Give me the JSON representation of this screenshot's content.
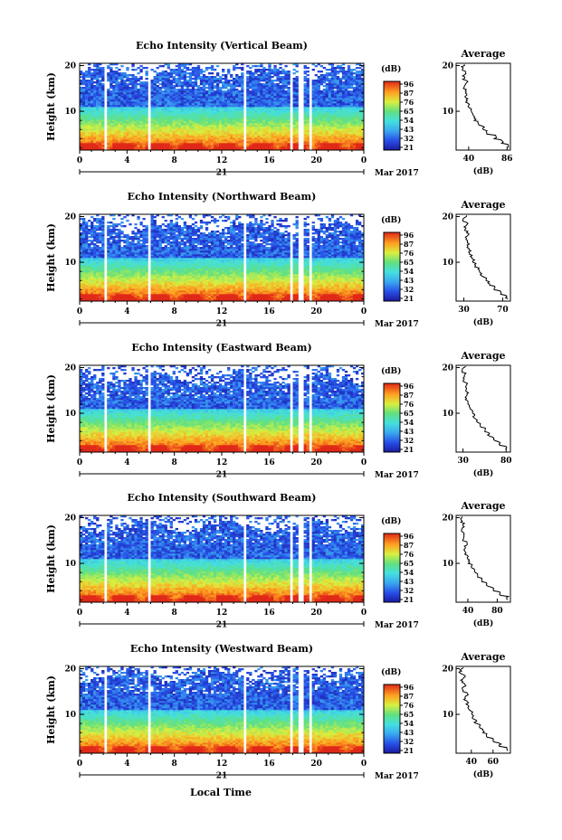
{
  "figure": {
    "time_axis_label": "Local Time",
    "date_label": "Mar 2017",
    "day_label": "21",
    "colorbar_unit": "(dB)",
    "height_axis_label": "Height (km)",
    "average_title": "Average",
    "average_xlabel": "(dB)"
  },
  "chart_data": [
    {
      "type": "heatmap",
      "title": "Echo Intensity (Vertical Beam)",
      "ylabel": "Height (km)",
      "x_ticks": [
        "0",
        "4",
        "8",
        "12",
        "16",
        "20",
        "0"
      ],
      "y_ticks": [
        "20",
        "10"
      ],
      "xlim": [
        0,
        24
      ],
      "ylim": [
        1.5,
        20.5
      ],
      "colorbar_ticks": [
        "96",
        "87",
        "76",
        "65",
        "54",
        "43",
        "32",
        "21"
      ],
      "gaps_hours": [
        [
          2.0,
          2.4
        ],
        [
          5.8,
          6.1
        ],
        [
          13.8,
          14.1
        ],
        [
          17.7,
          18.1
        ],
        [
          18.5,
          18.9
        ],
        [
          19.3,
          19.7
        ]
      ],
      "top_km": 19.5,
      "high_at_top": false,
      "average": {
        "title": "Average",
        "xlabel": "(dB)",
        "x_ticks": [
          "40",
          "86"
        ],
        "xlim": [
          25,
          90
        ],
        "y_ticks": [
          "20",
          "10"
        ],
        "ylim": [
          1.5,
          20.5
        ],
        "profile_km": [
          2,
          3,
          4,
          5,
          6,
          7,
          8,
          9,
          10,
          11,
          12,
          13,
          14,
          15,
          16,
          17,
          18,
          19,
          20
        ],
        "profile_db": [
          88,
          80,
          72,
          62,
          58,
          52,
          48,
          45,
          42,
          40,
          38,
          37,
          36,
          35,
          38,
          34,
          36,
          33,
          35
        ]
      }
    },
    {
      "type": "heatmap",
      "title": "Echo Intensity (Northward Beam)",
      "ylabel": "Height (km)",
      "x_ticks": [
        "0",
        "4",
        "8",
        "12",
        "16",
        "20",
        "0"
      ],
      "y_ticks": [
        "20",
        "10"
      ],
      "xlim": [
        0,
        24
      ],
      "ylim": [
        1.5,
        20.5
      ],
      "colorbar_ticks": [
        "96",
        "87",
        "76",
        "65",
        "54",
        "43",
        "32",
        "21"
      ],
      "gaps_hours": [
        [
          2.0,
          2.4
        ],
        [
          5.8,
          6.1
        ],
        [
          13.8,
          14.1
        ],
        [
          17.7,
          18.1
        ],
        [
          18.5,
          18.9
        ],
        [
          19.3,
          19.7
        ]
      ],
      "top_km": 18.5,
      "high_at_top": false,
      "average": {
        "title": "Average",
        "xlabel": "(dB)",
        "x_ticks": [
          "30",
          "70"
        ],
        "xlim": [
          22,
          78
        ],
        "y_ticks": [
          "20",
          "10"
        ],
        "ylim": [
          1.5,
          20.5
        ],
        "profile_km": [
          2,
          3,
          4,
          5,
          6,
          7,
          8,
          9,
          10,
          11,
          12,
          13,
          14,
          15,
          16,
          17,
          18,
          19,
          20
        ],
        "profile_db": [
          74,
          68,
          62,
          56,
          52,
          48,
          45,
          42,
          40,
          37,
          36,
          34,
          35,
          32,
          34,
          31,
          33,
          30,
          32
        ]
      }
    },
    {
      "type": "heatmap",
      "title": "Echo Intensity (Eastward Beam)",
      "ylabel": "Height (km)",
      "x_ticks": [
        "0",
        "4",
        "8",
        "12",
        "16",
        "20",
        "0"
      ],
      "y_ticks": [
        "20",
        "10"
      ],
      "xlim": [
        0,
        24
      ],
      "ylim": [
        1.5,
        20.5
      ],
      "colorbar_ticks": [
        "96",
        "87",
        "76",
        "65",
        "54",
        "43",
        "32",
        "21"
      ],
      "gaps_hours": [
        [
          2.0,
          2.4
        ],
        [
          5.8,
          6.1
        ],
        [
          13.8,
          14.1
        ],
        [
          17.7,
          18.1
        ],
        [
          18.5,
          18.9
        ],
        [
          19.3,
          19.7
        ]
      ],
      "top_km": 18.5,
      "high_at_top": false,
      "average": {
        "title": "Average",
        "xlabel": "(dB)",
        "x_ticks": [
          "30",
          "80"
        ],
        "xlim": [
          22,
          85
        ],
        "y_ticks": [
          "20",
          "10"
        ],
        "ylim": [
          1.5,
          20.5
        ],
        "profile_km": [
          2,
          3,
          4,
          5,
          6,
          7,
          8,
          9,
          10,
          11,
          12,
          13,
          14,
          15,
          16,
          17,
          18,
          19,
          20
        ],
        "profile_db": [
          80,
          72,
          66,
          60,
          55,
          50,
          46,
          43,
          40,
          38,
          36,
          34,
          35,
          33,
          34,
          31,
          33,
          30,
          32
        ]
      }
    },
    {
      "type": "heatmap",
      "title": "Echo Intensity (Southward Beam)",
      "ylabel": "Height (km)",
      "x_ticks": [
        "0",
        "4",
        "8",
        "12",
        "16",
        "20",
        "0"
      ],
      "y_ticks": [
        "20",
        "10"
      ],
      "xlim": [
        0,
        24
      ],
      "ylim": [
        1.5,
        20.5
      ],
      "colorbar_ticks": [
        "96",
        "87",
        "76",
        "65",
        "54",
        "43",
        "32",
        "21"
      ],
      "gaps_hours": [
        [
          2.0,
          2.4
        ],
        [
          5.8,
          6.1
        ],
        [
          13.8,
          14.1
        ],
        [
          17.7,
          18.1
        ],
        [
          18.5,
          18.9
        ],
        [
          19.3,
          19.7
        ]
      ],
      "top_km": 19.0,
      "high_at_top": false,
      "average": {
        "title": "Average",
        "xlabel": "(dB)",
        "x_ticks": [
          "40",
          "80"
        ],
        "xlim": [
          24,
          98
        ],
        "y_ticks": [
          "20",
          "10"
        ],
        "ylim": [
          1.5,
          20.5
        ],
        "profile_km": [
          2,
          3,
          4,
          5,
          6,
          7,
          8,
          9,
          10,
          11,
          12,
          13,
          14,
          15,
          16,
          17,
          18,
          19,
          20
        ],
        "profile_db": [
          94,
          84,
          74,
          66,
          60,
          54,
          49,
          45,
          42,
          40,
          37,
          36,
          38,
          34,
          35,
          32,
          34,
          31,
          33
        ]
      }
    },
    {
      "type": "heatmap",
      "title": "Echo Intensity (Westward Beam)",
      "ylabel": "Height (km)",
      "x_ticks": [
        "0",
        "4",
        "8",
        "12",
        "16",
        "20",
        "0"
      ],
      "y_ticks": [
        "20",
        "10"
      ],
      "xlim": [
        0,
        24
      ],
      "ylim": [
        1.5,
        20.5
      ],
      "colorbar_ticks": [
        "96",
        "87",
        "76",
        "65",
        "54",
        "43",
        "32",
        "21"
      ],
      "gaps_hours": [
        [
          2.0,
          2.4
        ],
        [
          5.8,
          6.1
        ],
        [
          13.8,
          14.1
        ],
        [
          17.7,
          18.1
        ],
        [
          18.5,
          18.9
        ],
        [
          19.3,
          19.7
        ]
      ],
      "top_km": 19.5,
      "high_at_top": false,
      "average": {
        "title": "Average",
        "xlabel": "(dB)",
        "x_ticks": [
          "40",
          "60"
        ],
        "xlim": [
          26,
          76
        ],
        "y_ticks": [
          "20",
          "10"
        ],
        "ylim": [
          1.5,
          20.5
        ],
        "profile_km": [
          2,
          3,
          4,
          5,
          6,
          7,
          8,
          9,
          10,
          11,
          12,
          13,
          14,
          15,
          16,
          17,
          18,
          19,
          20
        ],
        "profile_db": [
          74,
          66,
          60,
          55,
          51,
          47,
          44,
          42,
          40,
          37,
          36,
          34,
          36,
          32,
          34,
          31,
          33,
          30,
          32
        ]
      }
    }
  ]
}
